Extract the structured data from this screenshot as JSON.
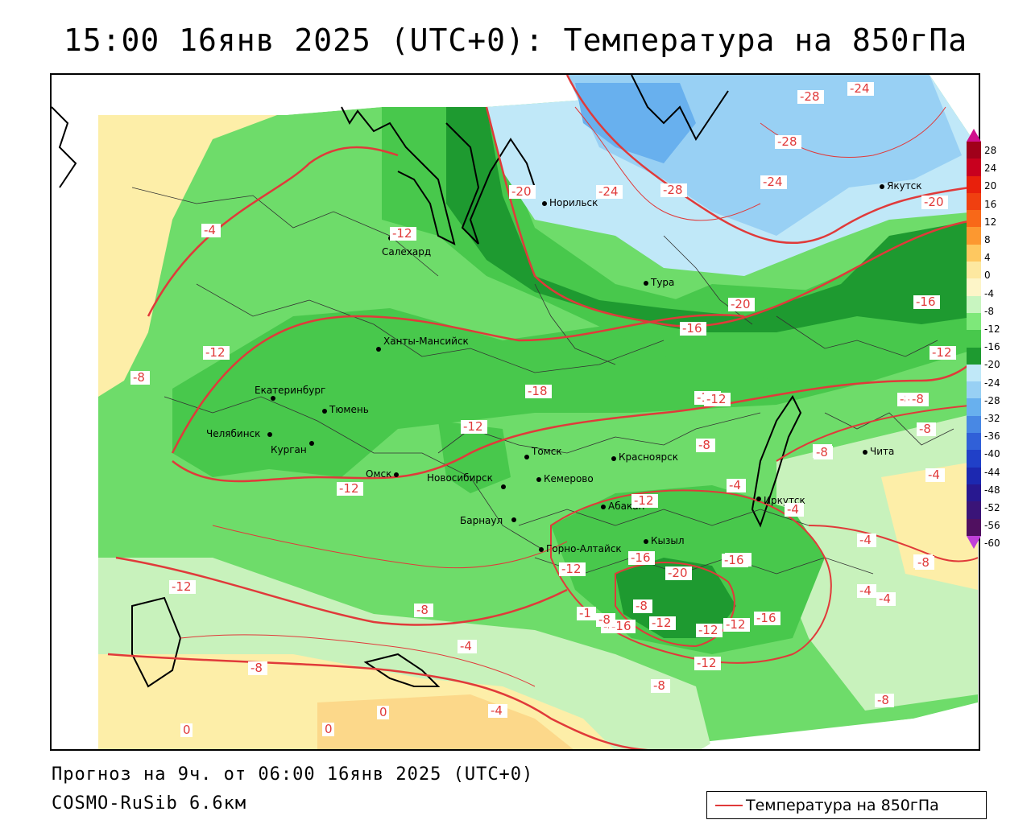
{
  "title": "15:00 16янв 2025 (UTC+0): Температура на 850гПа",
  "forecast_line": "Прогноз на 9ч. от 06:00 16янв 2025 (UTC+0)",
  "model_line": "COSMO-RuSib 6.6км",
  "legend": {
    "label": "Температура на 850гПа",
    "line_color": "#e03a3a"
  },
  "color_scale": {
    "ticks": [
      "28",
      "24",
      "20",
      "16",
      "12",
      "8",
      "4",
      "0",
      "-4",
      "-8",
      "-12",
      "-16",
      "-20",
      "-24",
      "-28",
      "-32",
      "-36",
      "-40",
      "-44",
      "-48",
      "-52",
      "-56",
      "-60"
    ],
    "colors": [
      "#a0001a",
      "#c8001e",
      "#e8200c",
      "#f04010",
      "#f86818",
      "#fc9830",
      "#fec860",
      "#fde8a0",
      "#fdf5c8",
      "#c8f5c0",
      "#7ee87a",
      "#48c84c",
      "#1e9a30",
      "#c0e8f8",
      "#98d0f4",
      "#68b0ee",
      "#4888e4",
      "#3060d8",
      "#2040c8",
      "#1c28b0",
      "#281890",
      "#3a1478",
      "#501060"
    ]
  },
  "cities": [
    {
      "name": "Салехард"
    },
    {
      "name": "Норильск"
    },
    {
      "name": "Тура"
    },
    {
      "name": "Якутск"
    },
    {
      "name": "Ханты-Мансийск"
    },
    {
      "name": "Екатеринбург"
    },
    {
      "name": "Тюмень"
    },
    {
      "name": "Челябинск"
    },
    {
      "name": "Курган"
    },
    {
      "name": "Омск"
    },
    {
      "name": "Новосибирск"
    },
    {
      "name": "Томск"
    },
    {
      "name": "Кемерово"
    },
    {
      "name": "Красноярск"
    },
    {
      "name": "Барнаул"
    },
    {
      "name": "Абакан"
    },
    {
      "name": "Горно-Алтайск"
    },
    {
      "name": "Кызыл"
    },
    {
      "name": "Иркутск"
    },
    {
      "name": "Чита"
    }
  ],
  "contour_labels": [
    "-28",
    "-24",
    "-28",
    "-24",
    "-20",
    "-28",
    "-24",
    "-20",
    "-18",
    "-12",
    "-4",
    "-16",
    "-20",
    "-16",
    "-12",
    "-12",
    "-8",
    "-12",
    "-12",
    "-12",
    "-12",
    "-8",
    "-8",
    "-12",
    "-8",
    "-8",
    "-4",
    "-4",
    "-4",
    "-8",
    "-4",
    "-12",
    "-8",
    "-4",
    "-8",
    "-8",
    "-16",
    "-16",
    "-20",
    "-12",
    "-12",
    "-4",
    "-8",
    "-8",
    "-4",
    "-8",
    "-4",
    "0",
    "0",
    "0",
    "-4",
    "-8",
    "-8",
    "-8",
    "-12",
    "-12",
    "-16",
    "-16",
    "-12",
    "-1",
    "-8",
    "-12"
  ]
}
